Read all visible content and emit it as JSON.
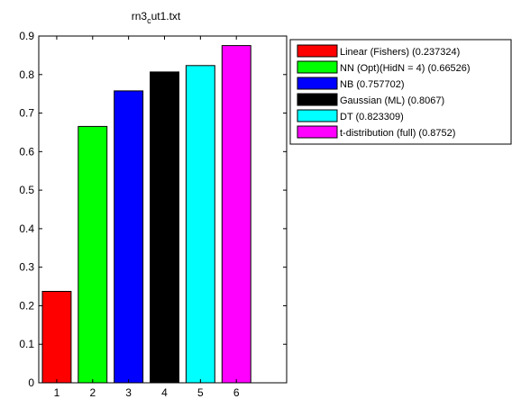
{
  "chart_data": {
    "type": "bar",
    "title_main": "rn3",
    "title_sub": "c",
    "title_rest": "ut1.txt",
    "categories": [
      "1",
      "2",
      "3",
      "4",
      "5",
      "6"
    ],
    "values": [
      0.237324,
      0.66526,
      0.757702,
      0.8067,
      0.823309,
      0.8752
    ],
    "colors": [
      "#ff0000",
      "#00ff00",
      "#0000ff",
      "#000000",
      "#00ffff",
      "#ff00ff"
    ],
    "ylim": [
      0,
      0.9
    ],
    "yticks": [
      0,
      0.1,
      0.2,
      0.3,
      0.4,
      0.5,
      0.6,
      0.7,
      0.8,
      0.9
    ],
    "ytick_labels": [
      "0",
      "0.1",
      "0.2",
      "0.3",
      "0.4",
      "0.5",
      "0.6",
      "0.7",
      "0.8",
      "0.9"
    ],
    "xlim": [
      0.5,
      7.4
    ],
    "grid": false,
    "legend_position": "outside-right",
    "legend": [
      "Linear (Fishers) (0.237324)",
      "NN (Opt)(HidN = 4) (0.66526)",
      "NB (0.757702)",
      "Gaussian (ML) (0.8067)",
      "DT (0.823309)",
      "t-distribution (full) (0.8752)"
    ]
  }
}
